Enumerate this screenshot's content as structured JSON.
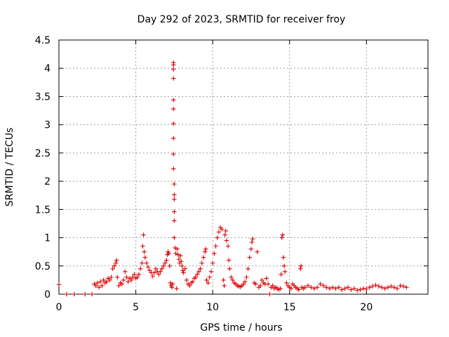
{
  "chart_data": {
    "type": "scatter",
    "title": "Day 292 of 2023, SRMTID for receiver froy",
    "xlabel": "GPS time / hours",
    "ylabel": "SRMTID / TECUs",
    "xlim": [
      0,
      24
    ],
    "ylim": [
      0,
      4.5
    ],
    "x_ticks": [
      0,
      5,
      10,
      15,
      20
    ],
    "x_tick_labels": [
      "0",
      "5",
      "10",
      "15",
      "20"
    ],
    "y_ticks": [
      0,
      0.5,
      1,
      1.5,
      2,
      2.5,
      3,
      3.5,
      4,
      4.5
    ],
    "y_tick_labels": [
      "0",
      "0.5",
      "1",
      "1.5",
      "2",
      "2.5",
      "3",
      "3.5",
      "4",
      "4.5"
    ],
    "grid": true,
    "marker": "plus",
    "colors": {
      "series": "#dd0000",
      "grid": "#a0a0a0",
      "axis": "#000000"
    },
    "series": [
      {
        "name": "SRMTID",
        "points": [
          [
            0.0,
            0.17
          ],
          [
            0.5,
            0.0
          ],
          [
            1.0,
            0.0
          ],
          [
            1.7,
            0.0
          ],
          [
            2.15,
            0.0
          ],
          [
            2.3,
            0.18
          ],
          [
            2.4,
            0.15
          ],
          [
            2.5,
            0.2
          ],
          [
            2.6,
            0.12
          ],
          [
            2.7,
            0.22
          ],
          [
            2.8,
            0.15
          ],
          [
            2.9,
            0.25
          ],
          [
            3.0,
            0.2
          ],
          [
            3.1,
            0.22
          ],
          [
            3.2,
            0.28
          ],
          [
            3.3,
            0.25
          ],
          [
            3.4,
            0.3
          ],
          [
            3.5,
            0.45
          ],
          [
            3.6,
            0.5
          ],
          [
            3.7,
            0.55
          ],
          [
            3.75,
            0.6
          ],
          [
            3.8,
            0.3
          ],
          [
            3.9,
            0.15
          ],
          [
            4.0,
            0.2
          ],
          [
            4.1,
            0.18
          ],
          [
            4.2,
            0.25
          ],
          [
            4.3,
            0.4
          ],
          [
            4.4,
            0.3
          ],
          [
            4.5,
            0.22
          ],
          [
            4.6,
            0.28
          ],
          [
            4.7,
            0.25
          ],
          [
            4.8,
            0.3
          ],
          [
            4.9,
            0.35
          ],
          [
            5.0,
            0.28
          ],
          [
            5.1,
            0.3
          ],
          [
            5.2,
            0.35
          ],
          [
            5.3,
            0.45
          ],
          [
            5.4,
            0.55
          ],
          [
            5.45,
            0.85
          ],
          [
            5.5,
            1.05
          ],
          [
            5.55,
            0.75
          ],
          [
            5.6,
            0.65
          ],
          [
            5.7,
            0.55
          ],
          [
            5.8,
            0.48
          ],
          [
            5.9,
            0.42
          ],
          [
            6.0,
            0.38
          ],
          [
            6.1,
            0.32
          ],
          [
            6.2,
            0.38
          ],
          [
            6.3,
            0.45
          ],
          [
            6.4,
            0.4
          ],
          [
            6.5,
            0.35
          ],
          [
            6.6,
            0.4
          ],
          [
            6.7,
            0.45
          ],
          [
            6.8,
            0.5
          ],
          [
            6.9,
            0.55
          ],
          [
            7.0,
            0.6
          ],
          [
            7.05,
            0.7
          ],
          [
            7.1,
            0.75
          ],
          [
            7.15,
            0.72
          ],
          [
            7.2,
            0.5
          ],
          [
            7.25,
            0.2
          ],
          [
            7.3,
            0.15
          ],
          [
            7.35,
            0.12
          ],
          [
            7.4,
            0.18
          ],
          [
            7.45,
            4.1
          ],
          [
            7.45,
            4.06
          ],
          [
            7.45,
            3.98
          ],
          [
            7.45,
            3.82
          ],
          [
            7.45,
            3.44
          ],
          [
            7.45,
            3.28
          ],
          [
            7.45,
            3.02
          ],
          [
            7.45,
            2.76
          ],
          [
            7.45,
            2.48
          ],
          [
            7.45,
            2.22
          ],
          [
            7.5,
            1.95
          ],
          [
            7.5,
            1.76
          ],
          [
            7.5,
            1.68
          ],
          [
            7.5,
            1.46
          ],
          [
            7.5,
            1.3
          ],
          [
            7.5,
            1.0
          ],
          [
            7.55,
            0.82
          ],
          [
            7.6,
            0.72
          ],
          [
            7.65,
            0.1
          ],
          [
            7.7,
            0.8
          ],
          [
            7.75,
            0.7
          ],
          [
            7.8,
            0.62
          ],
          [
            7.85,
            0.55
          ],
          [
            7.9,
            0.68
          ],
          [
            7.95,
            0.58
          ],
          [
            8.0,
            0.5
          ],
          [
            8.05,
            0.42
          ],
          [
            8.1,
            0.38
          ],
          [
            8.2,
            0.45
          ],
          [
            8.3,
            0.25
          ],
          [
            8.4,
            0.18
          ],
          [
            8.5,
            0.15
          ],
          [
            8.6,
            0.2
          ],
          [
            8.7,
            0.22
          ],
          [
            8.8,
            0.28
          ],
          [
            8.9,
            0.3
          ],
          [
            9.0,
            0.35
          ],
          [
            9.1,
            0.4
          ],
          [
            9.2,
            0.45
          ],
          [
            9.3,
            0.55
          ],
          [
            9.4,
            0.65
          ],
          [
            9.5,
            0.75
          ],
          [
            9.55,
            0.8
          ],
          [
            9.6,
            0.25
          ],
          [
            9.7,
            0.2
          ],
          [
            9.8,
            0.3
          ],
          [
            9.9,
            0.4
          ],
          [
            10.0,
            0.55
          ],
          [
            10.1,
            0.72
          ],
          [
            10.2,
            0.85
          ],
          [
            10.3,
            1.0
          ],
          [
            10.4,
            1.1
          ],
          [
            10.5,
            1.18
          ],
          [
            10.6,
            1.15
          ],
          [
            10.7,
            0.25
          ],
          [
            10.75,
            0.15
          ],
          [
            10.8,
            1.05
          ],
          [
            10.85,
            1.12
          ],
          [
            10.9,
            0.95
          ],
          [
            11.0,
            0.85
          ],
          [
            11.05,
            0.6
          ],
          [
            11.1,
            0.45
          ],
          [
            11.2,
            0.3
          ],
          [
            11.3,
            0.25
          ],
          [
            11.4,
            0.2
          ],
          [
            11.5,
            0.18
          ],
          [
            11.6,
            0.15
          ],
          [
            11.7,
            0.14
          ],
          [
            11.8,
            0.13
          ],
          [
            11.9,
            0.15
          ],
          [
            12.0,
            0.18
          ],
          [
            12.1,
            0.22
          ],
          [
            12.2,
            0.3
          ],
          [
            12.3,
            0.45
          ],
          [
            12.4,
            0.65
          ],
          [
            12.5,
            0.8
          ],
          [
            12.55,
            0.92
          ],
          [
            12.6,
            0.98
          ],
          [
            12.7,
            0.2
          ],
          [
            12.8,
            0.18
          ],
          [
            12.9,
            0.75
          ],
          [
            13.0,
            0.12
          ],
          [
            13.1,
            0.15
          ],
          [
            13.2,
            0.25
          ],
          [
            13.3,
            0.2
          ],
          [
            13.4,
            0.18
          ],
          [
            13.5,
            0.28
          ],
          [
            13.6,
            0.18
          ],
          [
            13.7,
            0.0
          ],
          [
            13.8,
            0.12
          ],
          [
            13.9,
            0.15
          ],
          [
            14.0,
            0.1
          ],
          [
            14.1,
            0.12
          ],
          [
            14.2,
            0.1
          ],
          [
            14.3,
            0.08
          ],
          [
            14.4,
            0.1
          ],
          [
            14.45,
            0.35
          ],
          [
            14.5,
            1.0
          ],
          [
            14.55,
            1.05
          ],
          [
            14.6,
            0.65
          ],
          [
            14.65,
            0.5
          ],
          [
            14.7,
            0.4
          ],
          [
            14.8,
            0.2
          ],
          [
            14.9,
            0.15
          ],
          [
            15.0,
            0.12
          ],
          [
            15.1,
            0.1
          ],
          [
            15.2,
            0.18
          ],
          [
            15.3,
            0.15
          ],
          [
            15.4,
            0.12
          ],
          [
            15.5,
            0.1
          ],
          [
            15.6,
            0.08
          ],
          [
            15.7,
            0.45
          ],
          [
            15.75,
            0.5
          ],
          [
            15.8,
            0.12
          ],
          [
            15.9,
            0.1
          ],
          [
            16.0,
            0.12
          ],
          [
            16.2,
            0.15
          ],
          [
            16.4,
            0.12
          ],
          [
            16.6,
            0.1
          ],
          [
            16.8,
            0.12
          ],
          [
            17.0,
            0.18
          ],
          [
            17.2,
            0.15
          ],
          [
            17.4,
            0.12
          ],
          [
            17.6,
            0.1
          ],
          [
            17.8,
            0.12
          ],
          [
            18.0,
            0.1
          ],
          [
            18.2,
            0.12
          ],
          [
            18.4,
            0.08
          ],
          [
            18.6,
            0.1
          ],
          [
            18.8,
            0.12
          ],
          [
            19.0,
            0.08
          ],
          [
            19.2,
            0.1
          ],
          [
            19.4,
            0.07
          ],
          [
            19.6,
            0.08
          ],
          [
            19.8,
            0.1
          ],
          [
            20.0,
            0.09
          ],
          [
            20.2,
            0.12
          ],
          [
            20.4,
            0.14
          ],
          [
            20.6,
            0.16
          ],
          [
            20.8,
            0.14
          ],
          [
            21.0,
            0.12
          ],
          [
            21.2,
            0.1
          ],
          [
            21.4,
            0.12
          ],
          [
            21.6,
            0.14
          ],
          [
            21.8,
            0.12
          ],
          [
            22.0,
            0.1
          ],
          [
            22.2,
            0.15
          ],
          [
            22.4,
            0.14
          ],
          [
            22.6,
            0.12
          ]
        ]
      }
    ]
  }
}
